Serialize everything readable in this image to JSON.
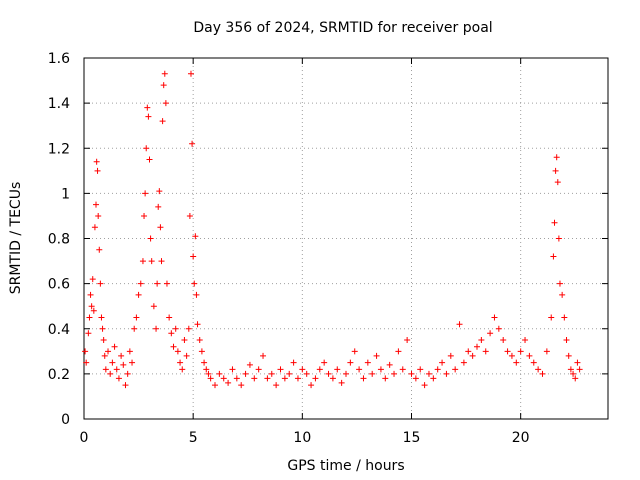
{
  "chart_data": {
    "type": "scatter",
    "title": "Day 356 of 2024, SRMTID for receiver poal",
    "xlabel": "GPS time / hours",
    "ylabel": "SRMTID / TECUs",
    "xlim": [
      0,
      24
    ],
    "ylim": [
      0,
      1.6
    ],
    "x_ticks": [
      0,
      5,
      10,
      15,
      20
    ],
    "x_tick_labels": [
      "0",
      "5",
      "10",
      "15",
      "20"
    ],
    "y_ticks": [
      0,
      0.2,
      0.4,
      0.6,
      0.8,
      1.0,
      1.2,
      1.4,
      1.6
    ],
    "y_tick_labels": [
      "0",
      "0.2",
      "0.4",
      "0.6",
      "0.8",
      "1",
      "1.2",
      "1.4",
      "1.6"
    ],
    "grid": true,
    "legend": "none",
    "marker": "plus",
    "series_color": "#ff0000",
    "series": [
      {
        "name": "SRMTID",
        "points": [
          [
            0.05,
            0.3
          ],
          [
            0.1,
            0.25
          ],
          [
            0.2,
            0.38
          ],
          [
            0.25,
            0.45
          ],
          [
            0.3,
            0.55
          ],
          [
            0.35,
            0.5
          ],
          [
            0.4,
            0.62
          ],
          [
            0.45,
            0.48
          ],
          [
            0.5,
            0.85
          ],
          [
            0.55,
            0.95
          ],
          [
            0.58,
            1.14
          ],
          [
            0.62,
            1.1
          ],
          [
            0.65,
            0.9
          ],
          [
            0.7,
            0.75
          ],
          [
            0.75,
            0.6
          ],
          [
            0.8,
            0.45
          ],
          [
            0.85,
            0.4
          ],
          [
            0.9,
            0.35
          ],
          [
            0.95,
            0.28
          ],
          [
            1.0,
            0.22
          ],
          [
            1.1,
            0.3
          ],
          [
            1.2,
            0.2
          ],
          [
            1.3,
            0.25
          ],
          [
            1.4,
            0.32
          ],
          [
            1.5,
            0.22
          ],
          [
            1.6,
            0.18
          ],
          [
            1.7,
            0.28
          ],
          [
            1.8,
            0.24
          ],
          [
            1.9,
            0.15
          ],
          [
            2.0,
            0.2
          ],
          [
            2.1,
            0.3
          ],
          [
            2.2,
            0.25
          ],
          [
            2.3,
            0.4
          ],
          [
            2.4,
            0.45
          ],
          [
            2.5,
            0.55
          ],
          [
            2.6,
            0.6
          ],
          [
            2.7,
            0.7
          ],
          [
            2.75,
            0.9
          ],
          [
            2.8,
            1.0
          ],
          [
            2.85,
            1.2
          ],
          [
            2.9,
            1.38
          ],
          [
            2.95,
            1.34
          ],
          [
            3.0,
            1.15
          ],
          [
            3.05,
            0.8
          ],
          [
            3.1,
            0.7
          ],
          [
            3.2,
            0.5
          ],
          [
            3.3,
            0.4
          ],
          [
            3.35,
            0.6
          ],
          [
            3.4,
            0.94
          ],
          [
            3.45,
            1.01
          ],
          [
            3.5,
            0.85
          ],
          [
            3.55,
            0.7
          ],
          [
            3.6,
            1.32
          ],
          [
            3.65,
            1.48
          ],
          [
            3.7,
            1.53
          ],
          [
            3.75,
            1.4
          ],
          [
            3.8,
            0.6
          ],
          [
            3.9,
            0.45
          ],
          [
            4.0,
            0.38
          ],
          [
            4.1,
            0.32
          ],
          [
            4.2,
            0.4
          ],
          [
            4.3,
            0.3
          ],
          [
            4.4,
            0.25
          ],
          [
            4.5,
            0.22
          ],
          [
            4.6,
            0.35
          ],
          [
            4.7,
            0.28
          ],
          [
            4.8,
            0.4
          ],
          [
            4.85,
            0.9
          ],
          [
            4.9,
            1.53
          ],
          [
            4.95,
            1.22
          ],
          [
            5.0,
            0.72
          ],
          [
            5.05,
            0.6
          ],
          [
            5.1,
            0.81
          ],
          [
            5.15,
            0.55
          ],
          [
            5.2,
            0.42
          ],
          [
            5.3,
            0.35
          ],
          [
            5.4,
            0.3
          ],
          [
            5.5,
            0.25
          ],
          [
            5.6,
            0.22
          ],
          [
            5.7,
            0.2
          ],
          [
            5.8,
            0.18
          ],
          [
            6.0,
            0.15
          ],
          [
            6.2,
            0.2
          ],
          [
            6.4,
            0.18
          ],
          [
            6.6,
            0.16
          ],
          [
            6.8,
            0.22
          ],
          [
            7.0,
            0.18
          ],
          [
            7.2,
            0.15
          ],
          [
            7.4,
            0.2
          ],
          [
            7.6,
            0.24
          ],
          [
            7.8,
            0.18
          ],
          [
            8.0,
            0.22
          ],
          [
            8.2,
            0.28
          ],
          [
            8.4,
            0.18
          ],
          [
            8.6,
            0.2
          ],
          [
            8.8,
            0.15
          ],
          [
            9.0,
            0.22
          ],
          [
            9.2,
            0.18
          ],
          [
            9.4,
            0.2
          ],
          [
            9.6,
            0.25
          ],
          [
            9.8,
            0.18
          ],
          [
            10.0,
            0.22
          ],
          [
            10.2,
            0.2
          ],
          [
            10.4,
            0.15
          ],
          [
            10.6,
            0.18
          ],
          [
            10.8,
            0.22
          ],
          [
            11.0,
            0.25
          ],
          [
            11.2,
            0.2
          ],
          [
            11.4,
            0.18
          ],
          [
            11.6,
            0.22
          ],
          [
            11.8,
            0.16
          ],
          [
            12.0,
            0.2
          ],
          [
            12.2,
            0.25
          ],
          [
            12.4,
            0.3
          ],
          [
            12.6,
            0.22
          ],
          [
            12.8,
            0.18
          ],
          [
            13.0,
            0.25
          ],
          [
            13.2,
            0.2
          ],
          [
            13.4,
            0.28
          ],
          [
            13.6,
            0.22
          ],
          [
            13.8,
            0.18
          ],
          [
            14.0,
            0.24
          ],
          [
            14.2,
            0.2
          ],
          [
            14.4,
            0.3
          ],
          [
            14.6,
            0.22
          ],
          [
            14.8,
            0.35
          ],
          [
            15.0,
            0.2
          ],
          [
            15.2,
            0.18
          ],
          [
            15.4,
            0.22
          ],
          [
            15.6,
            0.15
          ],
          [
            15.8,
            0.2
          ],
          [
            16.0,
            0.18
          ],
          [
            16.2,
            0.22
          ],
          [
            16.4,
            0.25
          ],
          [
            16.6,
            0.2
          ],
          [
            16.8,
            0.28
          ],
          [
            17.0,
            0.22
          ],
          [
            17.2,
            0.42
          ],
          [
            17.4,
            0.25
          ],
          [
            17.6,
            0.3
          ],
          [
            17.8,
            0.28
          ],
          [
            18.0,
            0.32
          ],
          [
            18.2,
            0.35
          ],
          [
            18.4,
            0.3
          ],
          [
            18.6,
            0.38
          ],
          [
            18.8,
            0.45
          ],
          [
            19.0,
            0.4
          ],
          [
            19.2,
            0.35
          ],
          [
            19.4,
            0.3
          ],
          [
            19.6,
            0.28
          ],
          [
            19.8,
            0.25
          ],
          [
            20.0,
            0.3
          ],
          [
            20.2,
            0.35
          ],
          [
            20.4,
            0.28
          ],
          [
            20.6,
            0.25
          ],
          [
            20.8,
            0.22
          ],
          [
            21.0,
            0.2
          ],
          [
            21.2,
            0.3
          ],
          [
            21.4,
            0.45
          ],
          [
            21.5,
            0.72
          ],
          [
            21.55,
            0.87
          ],
          [
            21.6,
            1.1
          ],
          [
            21.65,
            1.16
          ],
          [
            21.7,
            1.05
          ],
          [
            21.75,
            0.8
          ],
          [
            21.8,
            0.6
          ],
          [
            21.9,
            0.55
          ],
          [
            22.0,
            0.45
          ],
          [
            22.1,
            0.35
          ],
          [
            22.2,
            0.28
          ],
          [
            22.3,
            0.22
          ],
          [
            22.4,
            0.2
          ],
          [
            22.5,
            0.18
          ],
          [
            22.6,
            0.25
          ],
          [
            22.7,
            0.22
          ]
        ]
      }
    ]
  }
}
